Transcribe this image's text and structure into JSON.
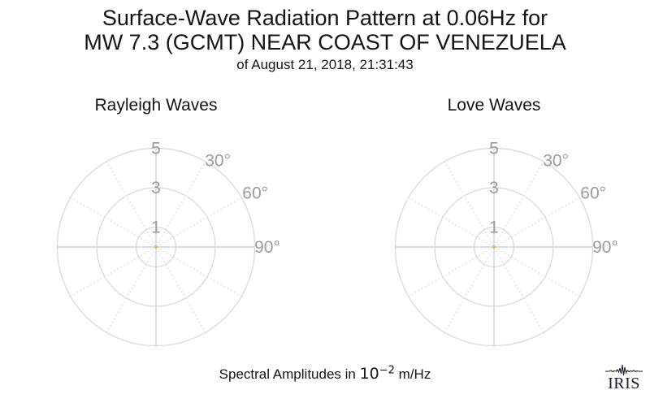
{
  "header": {
    "title_line1": "Surface-Wave Radiation Pattern at 0.06Hz for",
    "title_line2": "MW 7.3 (GCMT) NEAR COAST OF VENEZUELA",
    "subtitle": "of August 21, 2018, 21:31:43"
  },
  "caption": {
    "prefix": "Spectral Amplitudes in ",
    "power_base": "10",
    "power_exponent": "−2",
    "suffix": " m/Hz"
  },
  "logo": {
    "text": "IRIS"
  },
  "colors": {
    "grid": "#dcdcdc",
    "axis": "#d4d4d4",
    "labels": "#9b9b9b",
    "pattern": "#fcb266",
    "text": "#141414",
    "logo": "#1a1a2e"
  },
  "chart_data": [
    {
      "type": "polar",
      "title": "Rayleigh Waves",
      "r_ticks": [
        1,
        3,
        5
      ],
      "r_max": 5,
      "r_units": "10^-2 m/Hz",
      "angle_tick_labels": [
        "30°",
        "60°",
        "90°"
      ],
      "angle_grid_step_deg": 30,
      "grid": "on",
      "series": [
        {
          "name": "rayleigh_radiation_pattern",
          "azimuth_deg_range": [
            0,
            360
          ],
          "amplitude": 0,
          "note": "pattern collapses to an orange point at the origin (amplitude ≈ 0 of 10^-2 m/Hz scale)"
        }
      ]
    },
    {
      "type": "polar",
      "title": "Love Waves",
      "r_ticks": [
        1,
        3,
        5
      ],
      "r_max": 5,
      "r_units": "10^-2 m/Hz",
      "angle_tick_labels": [
        "30°",
        "60°",
        "90°"
      ],
      "angle_grid_step_deg": 30,
      "grid": "on",
      "series": [
        {
          "name": "love_radiation_pattern",
          "azimuth_deg_range": [
            0,
            360
          ],
          "amplitude": 0,
          "note": "pattern collapses to an orange point at the origin (amplitude ≈ 0 of 10^-2 m/Hz scale)"
        }
      ]
    }
  ]
}
